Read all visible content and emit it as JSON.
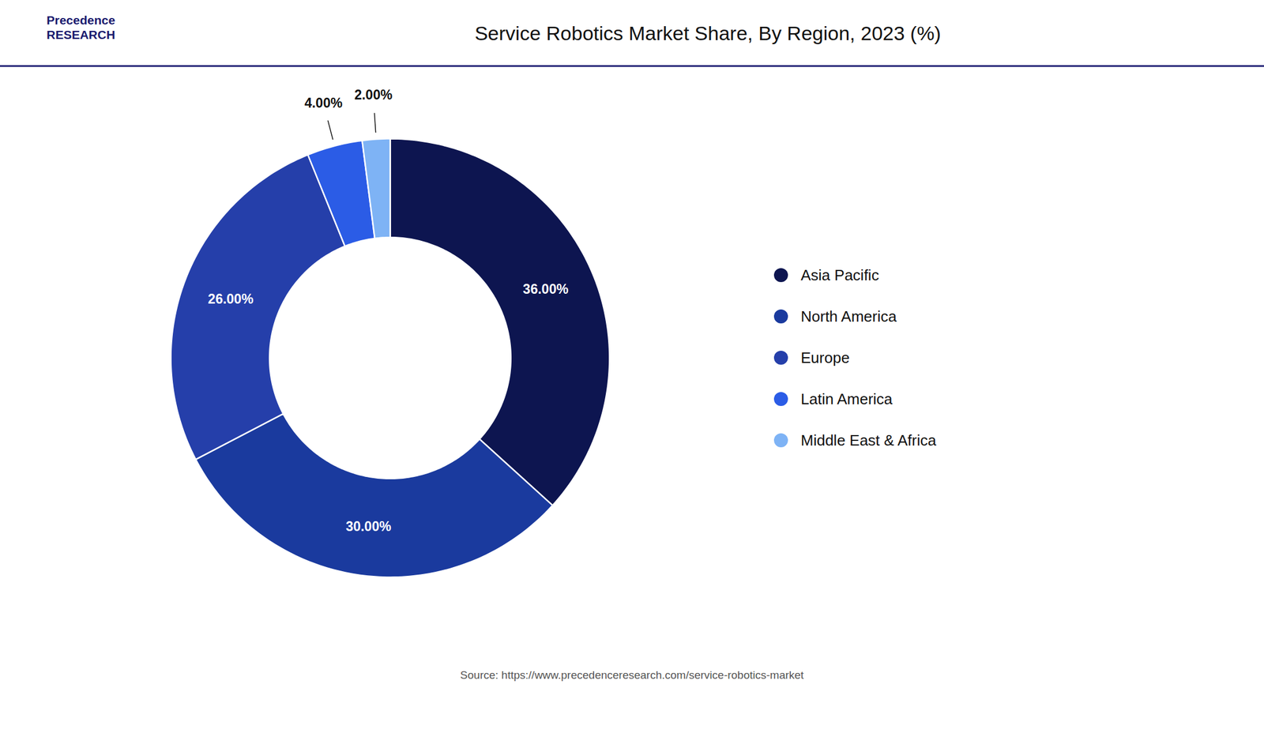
{
  "chart_data": {
    "type": "pie",
    "title": "Service Robotics Market Share, By Region, 2023 (%)",
    "categories": [
      "Asia Pacific",
      "North America",
      "Europe",
      "Latin America",
      "Middle East & Africa"
    ],
    "values": [
      36.0,
      30.0,
      26.0,
      4.0,
      2.0
    ],
    "value_labels": [
      "36.00%",
      "30.00%",
      "26.00%",
      "4.00%",
      "2.00%"
    ],
    "colors": [
      "#0d1550",
      "#1a3a9e",
      "#253faa",
      "#2b5ce6",
      "#7eb3f5"
    ],
    "data_labels": true,
    "legend": "right",
    "annotations": [
      "Precedence\nRESEARCH",
      "Source: https://www.precedenceresearch.com/service-robotics-market"
    ]
  }
}
